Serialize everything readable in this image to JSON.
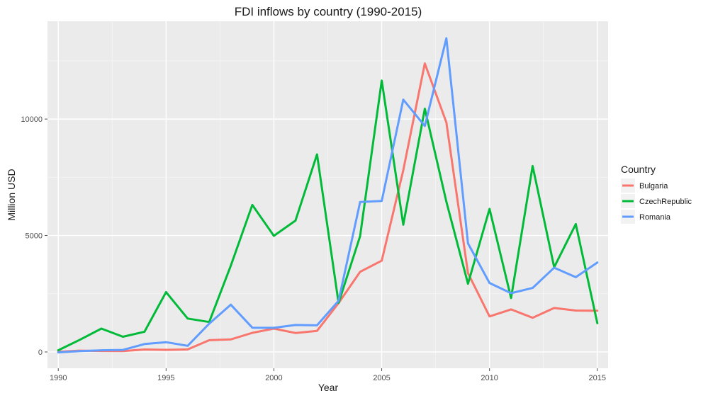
{
  "chart_data": {
    "type": "line",
    "title": "FDI inflows by country (1990-2015)",
    "xlabel": "Year",
    "ylabel": "Million USD",
    "legend_title": "Country",
    "legend_position": "right",
    "grid": true,
    "xlim": [
      1989.5,
      2015.5
    ],
    "ylim": [
      -700,
      14200
    ],
    "x_ticks": [
      1990,
      1995,
      2000,
      2005,
      2010,
      2015
    ],
    "y_ticks": [
      0,
      5000,
      10000
    ],
    "x": [
      1990,
      1991,
      1992,
      1993,
      1994,
      1995,
      1996,
      1997,
      1998,
      1999,
      2000,
      2001,
      2002,
      2003,
      2004,
      2005,
      2006,
      2007,
      2008,
      2009,
      2010,
      2011,
      2012,
      2013,
      2014,
      2015
    ],
    "series": [
      {
        "name": "Bulgaria",
        "color": "#F8766D",
        "values": [
          4,
          56,
          42,
          40,
          105,
          90,
          109,
          505,
          537,
          819,
          1002,
          813,
          905,
          2097,
          3443,
          3920,
          7805,
          12389,
          9855,
          3385,
          1525,
          1827,
          1467,
          1888,
          1777,
          1772
        ]
      },
      {
        "name": "CzechRepublic",
        "color": "#00BA38",
        "values": [
          72,
          523,
          1004,
          654,
          868,
          2568,
          1435,
          1286,
          3700,
          6313,
          4987,
          5641,
          8483,
          2103,
          4974,
          11653,
          5463,
          10444,
          6451,
          2927,
          6141,
          2318,
          7984,
          3639,
          5492,
          1237
        ]
      },
      {
        "name": "Romania",
        "color": "#619CFF",
        "values": [
          -18,
          37,
          73,
          87,
          341,
          419,
          263,
          1215,
          2031,
          1041,
          1037,
          1157,
          1144,
          2196,
          6436,
          6483,
          10835,
          9703,
          13470,
          4665,
          2960,
          2522,
          2748,
          3617,
          3211,
          3839
        ]
      }
    ]
  }
}
